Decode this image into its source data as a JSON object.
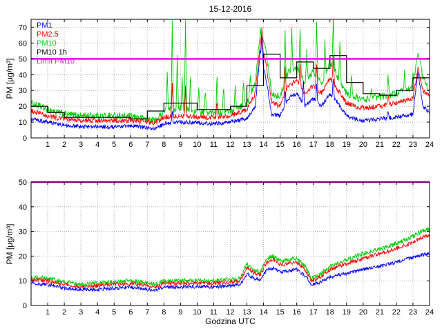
{
  "figure": {
    "title": "15-12-2016",
    "xlabel": "Godzina UTC",
    "ylabel": "PM [µg/m³]"
  },
  "chart_data": [
    {
      "type": "line",
      "title": "15-12-2016",
      "ylabel": "PM [µg/m³]",
      "xlim": [
        0,
        24
      ],
      "ylim": [
        0,
        75
      ],
      "xticks": [
        1,
        2,
        3,
        4,
        5,
        6,
        7,
        8,
        9,
        10,
        11,
        12,
        13,
        14,
        15,
        16,
        17,
        18,
        19,
        20,
        21,
        22,
        23,
        24
      ],
      "yticks": [
        0,
        10,
        20,
        30,
        40,
        50,
        60,
        70
      ],
      "grid": true,
      "legend_position": "top-left",
      "limit": {
        "label": "Limit PM10",
        "value": 50,
        "color": "#ff00ff"
      },
      "legend": [
        {
          "label": "PM1",
          "color": "#0000ff"
        },
        {
          "label": "PM2.5",
          "color": "#ff0000"
        },
        {
          "label": "PM10",
          "color": "#00cc00"
        },
        {
          "label": "PM10 1h",
          "color": "#000000"
        },
        {
          "label": "Limit PM10",
          "color": "#ff00ff"
        }
      ],
      "x": [
        0,
        1,
        2,
        3,
        4,
        5,
        6,
        7,
        7.5,
        8,
        9,
        10,
        11,
        12,
        13,
        13.5,
        13.8,
        14.1,
        14.5,
        15,
        15.5,
        16,
        16.5,
        17,
        17.5,
        18,
        18.5,
        19,
        19.5,
        20,
        21,
        22,
        23,
        23.3,
        23.6,
        24
      ],
      "series": [
        {
          "name": "PM10",
          "color": "#00cc00",
          "noise": 2.2,
          "values": [
            22,
            18,
            15,
            14,
            14,
            14,
            13.5,
            12,
            11,
            17,
            19,
            16,
            16,
            17,
            22,
            34,
            68,
            60,
            28,
            26,
            42,
            45,
            35,
            42,
            35,
            48,
            38,
            28,
            26,
            24,
            26,
            28,
            32,
            55,
            38,
            30
          ],
          "spikes": [
            [
              8.2,
              25
            ],
            [
              8.5,
              55
            ],
            [
              8.8,
              32
            ],
            [
              9.1,
              20
            ],
            [
              9.3,
              55
            ],
            [
              9.6,
              22
            ],
            [
              10.1,
              18
            ],
            [
              10.5,
              14
            ],
            [
              11.2,
              24
            ],
            [
              11.6,
              16
            ],
            [
              12.3,
              14
            ],
            [
              12.8,
              16
            ],
            [
              13.2,
              12
            ],
            [
              15.3,
              32
            ],
            [
              15.7,
              26
            ],
            [
              16.2,
              30
            ],
            [
              16.6,
              18
            ],
            [
              17.2,
              33
            ],
            [
              17.7,
              22
            ],
            [
              18.2,
              35
            ],
            [
              18.6,
              26
            ],
            [
              19.3,
              12
            ],
            [
              20.5,
              8
            ],
            [
              21.5,
              14
            ],
            [
              22.5,
              12
            ],
            [
              23.0,
              8
            ]
          ]
        },
        {
          "name": "PM2.5",
          "color": "#ff0000",
          "noise": 1.6,
          "values": [
            17,
            14,
            12,
            11,
            11,
            11,
            11,
            10,
            9.5,
            13,
            14,
            13,
            13,
            14,
            18,
            28,
            60,
            50,
            22,
            20,
            33,
            36,
            28,
            33,
            28,
            38,
            30,
            22,
            20,
            19,
            20,
            22,
            25,
            45,
            30,
            26
          ],
          "spikes": [
            [
              8.5,
              22
            ],
            [
              9.3,
              18
            ],
            [
              11.2,
              10
            ],
            [
              13.9,
              12
            ],
            [
              15.3,
              16
            ],
            [
              16.2,
              14
            ],
            [
              17.2,
              16
            ],
            [
              18.2,
              18
            ],
            [
              21.5,
              6
            ]
          ]
        },
        {
          "name": "PM1",
          "color": "#0000ff",
          "noise": 1.3,
          "values": [
            12,
            10,
            8,
            7,
            7,
            7,
            7.5,
            6.5,
            6,
            9,
            10,
            9.5,
            9,
            10,
            12,
            20,
            55,
            40,
            15,
            14,
            25,
            28,
            20,
            25,
            20,
            28,
            22,
            14,
            12,
            11,
            12,
            13,
            15,
            42,
            20,
            16
          ],
          "spikes": [
            [
              8.5,
              8
            ],
            [
              13.9,
              15
            ],
            [
              15.3,
              10
            ],
            [
              16.4,
              15
            ],
            [
              17.2,
              10
            ],
            [
              18.2,
              12
            ],
            [
              21.5,
              5
            ]
          ]
        },
        {
          "name": "PM10 1h",
          "color": "#000000",
          "style": "step",
          "values": [
            20,
            16,
            13,
            13,
            13,
            13,
            12,
            17,
            22,
            22,
            18,
            18,
            20,
            33,
            53,
            38,
            48,
            44,
            52,
            35,
            28,
            27,
            30,
            38
          ]
        }
      ]
    },
    {
      "type": "line",
      "xlabel": "Godzina UTC",
      "ylabel": "PM [µg/m³]",
      "xlim": [
        0,
        24
      ],
      "ylim": [
        0,
        50
      ],
      "xticks": [
        1,
        2,
        3,
        4,
        5,
        6,
        7,
        8,
        9,
        10,
        11,
        12,
        13,
        14,
        15,
        16,
        17,
        18,
        19,
        20,
        21,
        22,
        23,
        24
      ],
      "yticks": [
        0,
        10,
        20,
        30,
        40,
        50
      ],
      "grid": true,
      "limit": {
        "label": "Limit PM10",
        "value": 50,
        "color": "#ff00ff"
      },
      "x": [
        0,
        1,
        2,
        3,
        4,
        5,
        6,
        7,
        7.5,
        8,
        9,
        10,
        11,
        12,
        12.6,
        13,
        13.4,
        13.8,
        14.2,
        14.6,
        15,
        15.5,
        16,
        16.5,
        16.9,
        17.3,
        18,
        19,
        20,
        21,
        22,
        23,
        23.5,
        24
      ],
      "series": [
        {
          "name": "PM10",
          "color": "#00cc00",
          "noise": 0.9,
          "values": [
            11.5,
            11,
            9.5,
            8.5,
            9,
            9.5,
            10,
            9,
            8.5,
            10,
            10,
            10,
            10,
            10.5,
            11,
            17,
            14,
            13.5,
            19,
            20,
            18,
            18.5,
            19,
            16,
            11,
            12,
            16,
            18.5,
            21,
            23,
            25,
            28,
            30,
            31
          ]
        },
        {
          "name": "PM2.5",
          "color": "#ff0000",
          "noise": 0.8,
          "values": [
            10.5,
            10,
            8.5,
            7.5,
            8,
            8.5,
            9,
            8,
            7.5,
            9,
            9,
            9,
            9,
            9.5,
            10,
            15.5,
            13,
            12.5,
            17.5,
            18.5,
            16.5,
            17,
            17.5,
            14.5,
            10,
            11,
            14.5,
            17,
            19,
            21,
            23,
            25.5,
            27.5,
            28.5
          ]
        },
        {
          "name": "PM1",
          "color": "#0000ff",
          "noise": 0.7,
          "values": [
            9,
            8.5,
            7,
            6.5,
            6.5,
            7,
            7.5,
            6.5,
            6,
            7.5,
            7.5,
            7.5,
            7.5,
            8,
            8.5,
            13,
            11,
            10.5,
            14.5,
            15,
            13.5,
            14,
            14.5,
            12,
            8.5,
            9,
            11.5,
            13,
            14.5,
            16,
            17.5,
            19.5,
            20.5,
            21
          ]
        }
      ]
    }
  ]
}
